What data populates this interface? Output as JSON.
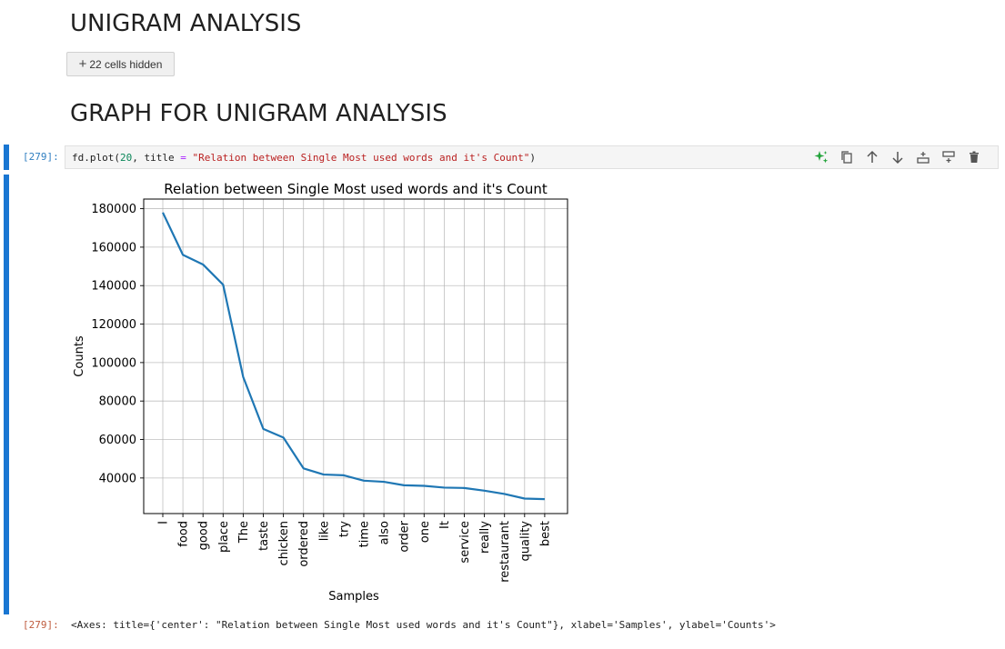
{
  "headings": {
    "unigram": "UNIGRAM ANALYSIS",
    "graph": "GRAPH FOR UNIGRAM ANALYSIS"
  },
  "hidden_cells": {
    "plus": "+",
    "label": "22 cells hidden"
  },
  "cell_input": {
    "prompt": "[279]:",
    "code": {
      "t1": "fd.plot(",
      "t2": "20",
      "t3": ", title ",
      "t4": "=",
      "t5": " ",
      "t6": "\"Relation between Single Most used words and it's Count\"",
      "t7": ")"
    }
  },
  "toolbar_icons": [
    "sparkle-icon",
    "copy-icon",
    "arrow-up-icon",
    "arrow-down-icon",
    "insert-below-icon",
    "insert-above-icon",
    "trash-icon"
  ],
  "colors": {
    "cell_accent": "#1976d2",
    "line": "#1f77b4",
    "sparkle": "#22a33a"
  },
  "cell_output": {
    "prompt": "[279]:",
    "text": "<Axes: title={'center': \"Relation between Single Most used words and it's Count\"}, xlabel='Samples', ylabel='Counts'>"
  },
  "chart_data": {
    "type": "line",
    "title": "Relation between Single Most used words and it's Count",
    "xlabel": "Samples",
    "ylabel": "Counts",
    "categories": [
      "I",
      "food",
      "good",
      "place",
      "The",
      "taste",
      "chicken",
      "ordered",
      "like",
      "try",
      "time",
      "also",
      "order",
      "one",
      "It",
      "service",
      "really",
      "restaurant",
      "quality",
      "best"
    ],
    "values": [
      178000,
      156000,
      151000,
      140500,
      92500,
      65500,
      61000,
      45000,
      41800,
      41400,
      38600,
      38000,
      36200,
      35900,
      35000,
      34800,
      33400,
      31700,
      29300,
      29000
    ],
    "yticks": [
      40000,
      60000,
      80000,
      100000,
      120000,
      140000,
      160000,
      180000
    ],
    "ylim": [
      21500,
      185000
    ],
    "grid": true
  }
}
